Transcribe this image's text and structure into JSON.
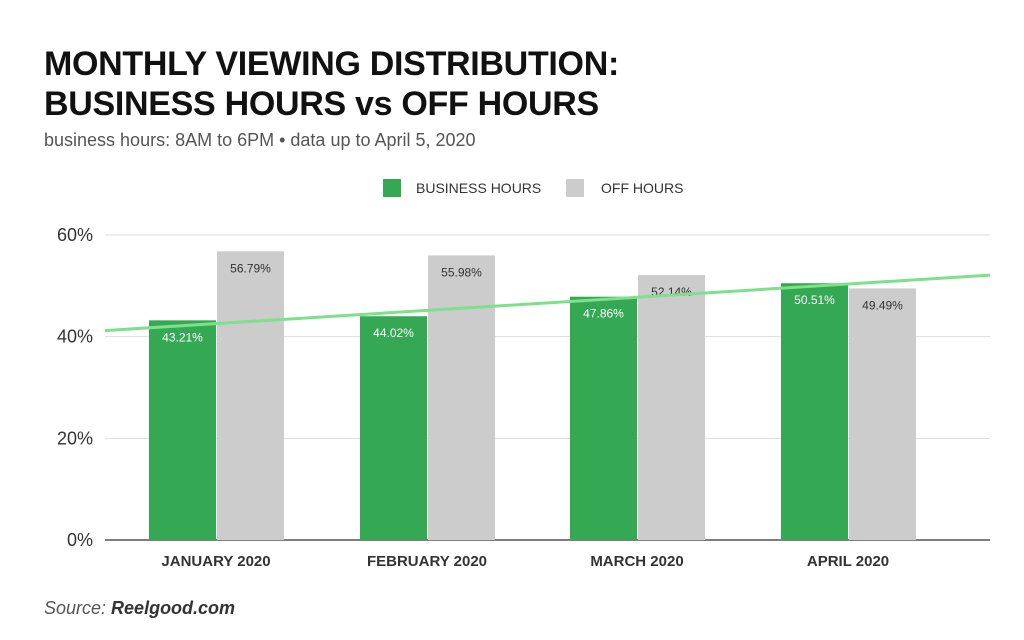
{
  "header": {
    "title_line1": "MONTHLY VIEWING DISTRIBUTION:",
    "title_line2": "BUSINESS HOURS vs OFF HOURS",
    "subtitle": "business hours: 8AM to 6PM • data up to April 5, 2020"
  },
  "footer": {
    "source_prefix": "Source: ",
    "source_name": "Reelgood.com"
  },
  "chart_data": {
    "type": "bar",
    "categories": [
      "JANUARY 2020",
      "FEBRUARY 2020",
      "MARCH 2020",
      "APRIL 2020"
    ],
    "series": [
      {
        "name": "BUSINESS HOURS",
        "values": [
          43.21,
          44.02,
          47.86,
          50.51
        ],
        "labels": [
          "43.21%",
          "44.02%",
          "47.86%",
          "50.51%"
        ],
        "color": "#34a853"
      },
      {
        "name": "OFF HOURS",
        "values": [
          56.79,
          55.98,
          52.14,
          49.49
        ],
        "labels": [
          "56.79%",
          "55.98%",
          "52.14%",
          "49.49%"
        ],
        "color": "#cccccc"
      }
    ],
    "trendline": {
      "series": "BUSINESS HOURS",
      "start_value": 41.2,
      "end_value": 52.1,
      "color": "#7ee08a"
    },
    "ylim": [
      0,
      60
    ],
    "yticks": [
      0,
      20,
      40,
      60
    ],
    "ytick_labels": [
      "0%",
      "20%",
      "40%",
      "60%"
    ],
    "grid": true,
    "legend": "top-center"
  }
}
